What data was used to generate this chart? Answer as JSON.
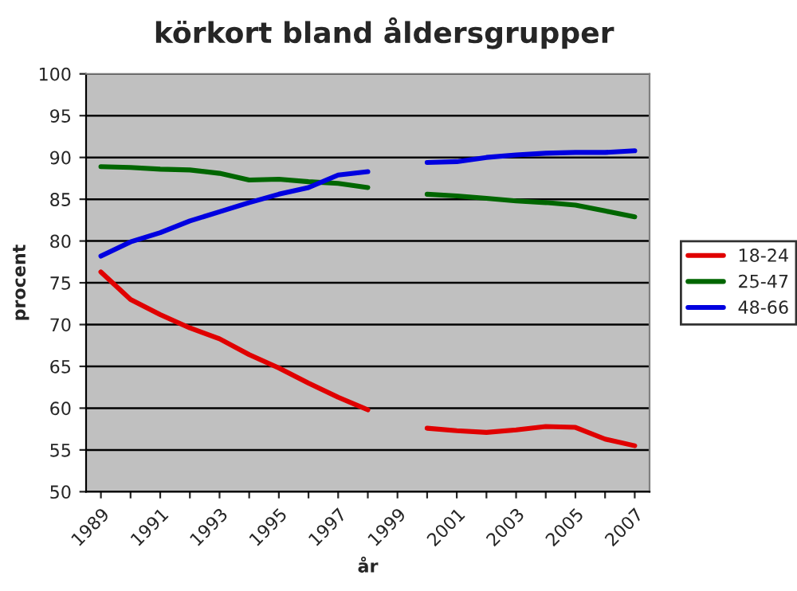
{
  "chart_data": {
    "type": "line",
    "title": "körkort bland åldersgrupper",
    "xlabel": "år",
    "ylabel": "procent",
    "categories": [
      "1989",
      null,
      "1991",
      null,
      "1993",
      null,
      "1995",
      null,
      "1997",
      null,
      "1999",
      null,
      "2001",
      null,
      "2003",
      null,
      "2005",
      null,
      "2007"
    ],
    "series": [
      {
        "name": "18-24",
        "color": "#e00000",
        "values": [
          76.3,
          73.0,
          71.2,
          69.6,
          68.3,
          66.4,
          64.8,
          63.0,
          61.3,
          59.8,
          null,
          57.6,
          57.3,
          57.1,
          57.4,
          57.8,
          57.7,
          56.3,
          55.5
        ]
      },
      {
        "name": "25-47",
        "color": "#006600",
        "values": [
          88.9,
          88.8,
          88.6,
          88.5,
          88.1,
          87.3,
          87.4,
          87.1,
          86.9,
          86.4,
          null,
          85.6,
          85.4,
          85.1,
          84.8,
          84.6,
          84.3,
          83.6,
          82.9
        ]
      },
      {
        "name": "48-66",
        "color": "#0000e0",
        "values": [
          78.2,
          79.9,
          81.0,
          82.4,
          83.5,
          84.6,
          85.6,
          86.4,
          87.9,
          88.3,
          null,
          89.4,
          89.5,
          90.0,
          90.3,
          90.5,
          90.6,
          90.6,
          90.8
        ]
      }
    ],
    "ylim": [
      50,
      100
    ],
    "yticks": [
      50,
      55,
      60,
      65,
      70,
      75,
      80,
      85,
      90,
      95,
      100
    ],
    "grid": "y",
    "legend": "right",
    "marker": "none",
    "line_style": "solid"
  }
}
